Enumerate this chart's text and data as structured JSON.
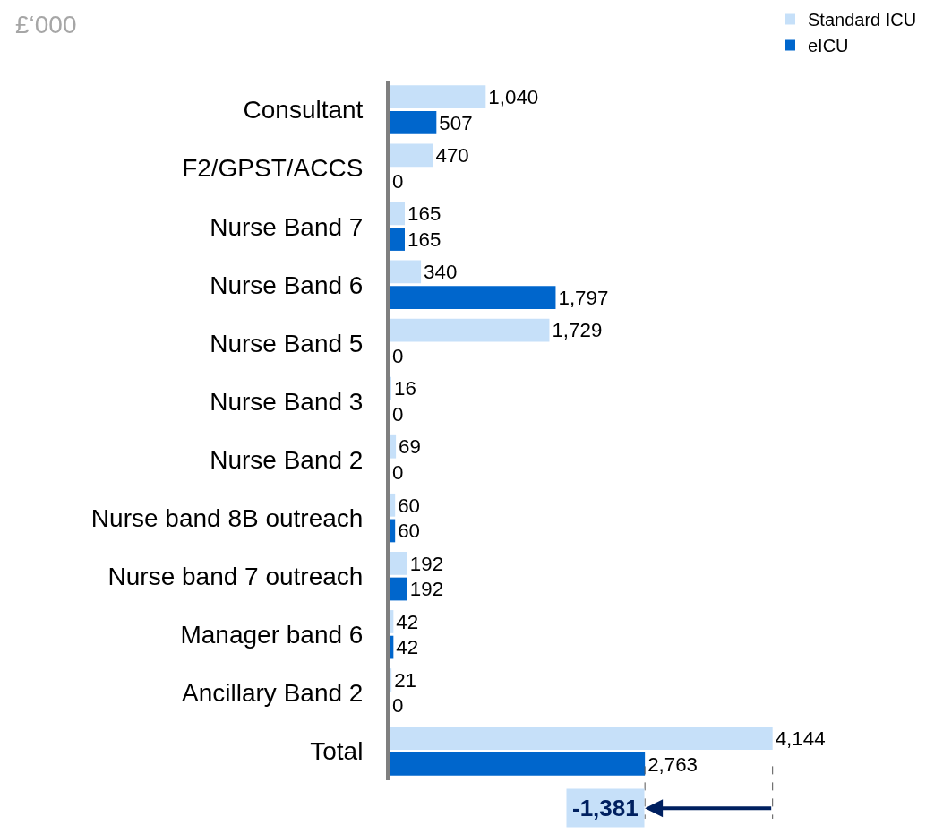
{
  "chart_data": {
    "type": "bar",
    "orientation": "horizontal",
    "categories": [
      "Consultant",
      "F2/GPST/ACCS",
      "Nurse Band 7",
      "Nurse Band 6",
      "Nurse Band 5",
      "Nurse Band 3",
      "Nurse Band 2",
      "Nurse band 8B outreach",
      "Nurse band 7 outreach",
      "Manager band 6",
      "Ancillary Band 2",
      "Total"
    ],
    "series": [
      {
        "name": "Standard ICU",
        "color": "#c6e0f9",
        "values": [
          1040,
          470,
          165,
          340,
          1729,
          16,
          69,
          60,
          192,
          42,
          21,
          4144
        ],
        "value_labels": [
          "1,040",
          "470",
          "165",
          "340",
          "1,729",
          "16",
          "69",
          "60",
          "192",
          "42",
          "21",
          "4,144"
        ]
      },
      {
        "name": "eICU",
        "color": "#0066cc",
        "values": [
          507,
          0,
          165,
          1797,
          0,
          0,
          0,
          60,
          192,
          42,
          0,
          2763
        ],
        "value_labels": [
          "507",
          "0",
          "165",
          "1,797",
          "0",
          "0",
          "0",
          "60",
          "192",
          "42",
          "0",
          "2,763"
        ]
      }
    ],
    "legend": "top right",
    "annotations": [
      "£‘000",
      "-1,381"
    ]
  }
}
